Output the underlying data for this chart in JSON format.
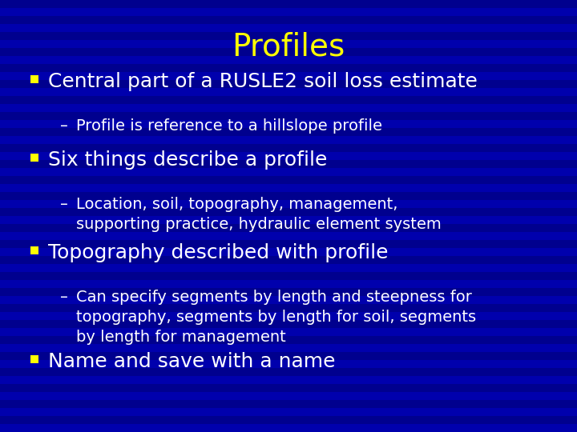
{
  "title": "Profiles",
  "title_color": "#FFFF00",
  "title_fontsize": 28,
  "background_color": "#000099",
  "bullet_square_color": "#FFFF00",
  "bullet_text_color": "#FFFFFF",
  "bullet_fontsize": 18,
  "sub_color": "#FFFFFF",
  "sub_fontsize": 14,
  "bullets": [
    {
      "text": "Central part of a RUSLE2 soil loss estimate",
      "subs": [
        "Profile is reference to a hillslope profile"
      ]
    },
    {
      "text": "Six things describe a profile",
      "subs": [
        "Location, soil, topography, management,\nsupporting practice, hydraulic element system"
      ]
    },
    {
      "text": "Topography described with profile",
      "subs": [
        "Can specify segments by length and steepness for\ntopography, segments by length for soil, segments\nby length for management"
      ]
    },
    {
      "text": "Name and save with a name",
      "subs": []
    }
  ]
}
